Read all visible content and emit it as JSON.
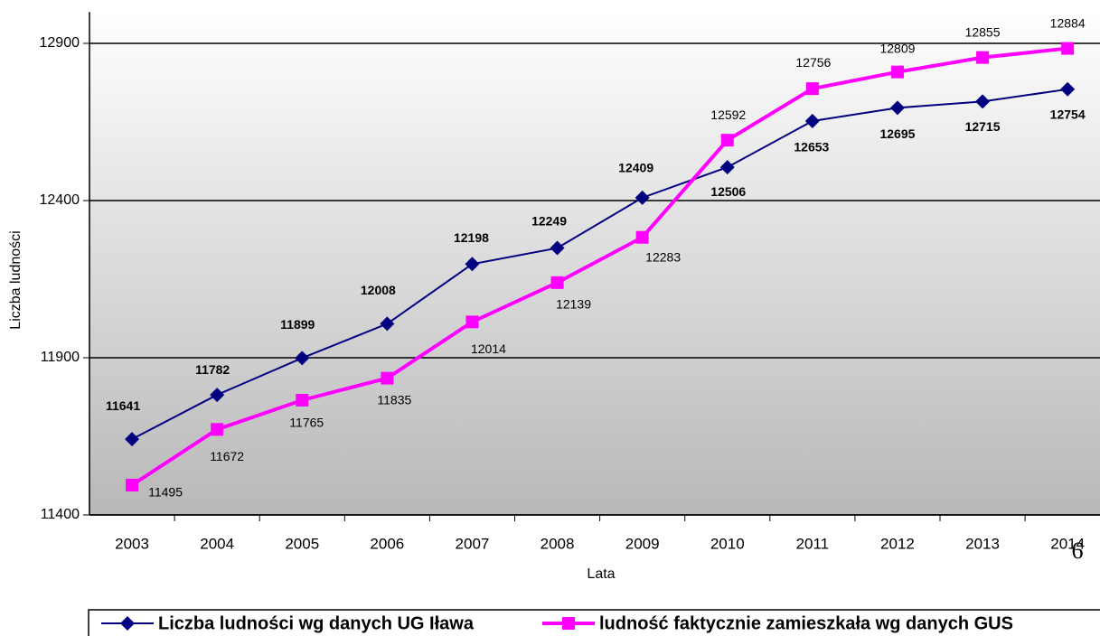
{
  "chart_data": {
    "type": "line",
    "categories": [
      "2003",
      "2004",
      "2005",
      "2006",
      "2007",
      "2008",
      "2009",
      "2010",
      "2011",
      "2012",
      "2013",
      "2014"
    ],
    "series": [
      {
        "name": "Liczba ludności wg danych UG Iława",
        "color": "#000080",
        "values": [
          11641,
          11782,
          11899,
          12008,
          12198,
          12249,
          12409,
          12506,
          12653,
          12695,
          12715,
          12754
        ]
      },
      {
        "name": "ludność faktycznie zamieszkała wg danych GUS",
        "color": "#ff00ff",
        "values": [
          11495,
          11672,
          11765,
          11835,
          12014,
          12139,
          12283,
          12592,
          12756,
          12809,
          12855,
          12884
        ]
      }
    ],
    "ylim": [
      11400,
      13000
    ],
    "yticks": [
      11400,
      11900,
      12400,
      12900
    ],
    "grid": true,
    "xlabel": "Lata",
    "ylabel": "Liczba ludności",
    "page_number": "6"
  }
}
